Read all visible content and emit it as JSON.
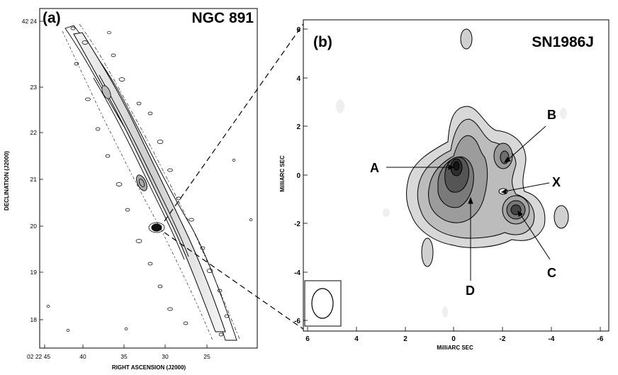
{
  "panel_a": {
    "letter": "(a)",
    "title": "NGC 891",
    "xlabel": "RIGHT ASCENSION (J2000)",
    "ylabel": "DECLINATION (J2000)",
    "x_ticks": [
      "02 22 45",
      "40",
      "35",
      "30",
      "25"
    ],
    "y_ticks": [
      "42 24",
      "23",
      "22",
      "21",
      "20",
      "19",
      "18"
    ]
  },
  "panel_b": {
    "letter": "(b)",
    "title": "SN1986J",
    "xlabel": "MilliARC SEC",
    "ylabel": "MilliARC SEC",
    "x_ticks": [
      "6",
      "4",
      "2",
      "0",
      "-2",
      "-4",
      "-6"
    ],
    "y_ticks": [
      "6",
      "4",
      "2",
      "0",
      "-2",
      "-4",
      "-6"
    ],
    "labels": {
      "A": "A",
      "B": "B",
      "C": "C",
      "D": "D",
      "X": "X"
    }
  }
}
